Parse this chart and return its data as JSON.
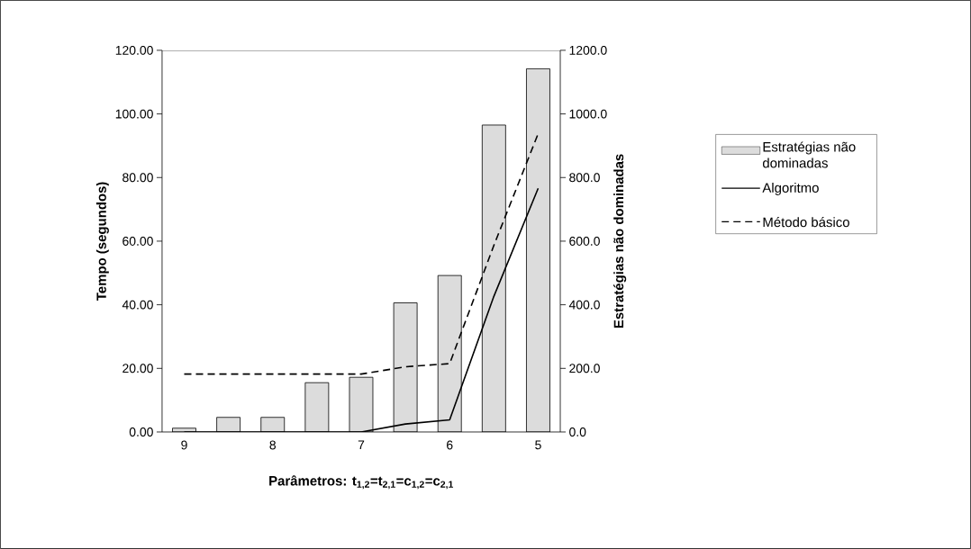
{
  "chart_data": {
    "type": "line",
    "xlabel": "**Parâmetros: t$_{1,2}$=t$_{2,1}$=c$_{1,2}$=c$_{2,1}$**",
    "ylabel": "Tempo (segundos)",
    "y2label": "Estratégias não dominadas",
    "categories": [
      "9",
      null,
      "8",
      null,
      "7",
      null,
      "6",
      null,
      "5"
    ],
    "series": [
      {
        "name": "Estratégias não dominadas",
        "type": "bar",
        "axis": "y2",
        "color": "#dcdcdc",
        "values": [
          12,
          46,
          46,
          155,
          172,
          406,
          492,
          965,
          1142
        ]
      },
      {
        "name": "Algoritmo",
        "color": "#000000",
        "line_style": "solid",
        "values": [
          0,
          0,
          0,
          0,
          0,
          2.5,
          3.8,
          42.7,
          76.6
        ]
      },
      {
        "name": "Método básico",
        "color": "#000000",
        "line_style": "dashed",
        "values": [
          18.2,
          18.2,
          18.2,
          18.2,
          18.2,
          20.5,
          21.5,
          58.7,
          93.8
        ]
      }
    ],
    "ylim": [
      0,
      120
    ],
    "yticks": [
      {
        "value": 0,
        "label": "0.00"
      },
      {
        "value": 20,
        "label": "20.00"
      },
      {
        "value": 40,
        "label": "40.00"
      },
      {
        "value": 60,
        "label": "60.00"
      },
      {
        "value": 80,
        "label": "80.00"
      },
      {
        "value": 100,
        "label": "100.00"
      },
      {
        "value": 120,
        "label": "120.00"
      }
    ],
    "y2lim": [
      0,
      1200
    ],
    "y2ticks": [
      {
        "value": 0,
        "label": "0.0"
      },
      {
        "value": 200,
        "label": "200.0"
      },
      {
        "value": 400,
        "label": "400.0"
      },
      {
        "value": 600,
        "label": "600.0"
      },
      {
        "value": 800,
        "label": "800.0"
      },
      {
        "value": 1000,
        "label": "1000.0"
      },
      {
        "value": 1200,
        "label": "1200.0"
      }
    ],
    "marker": "none",
    "grid": false,
    "legend": "right"
  }
}
